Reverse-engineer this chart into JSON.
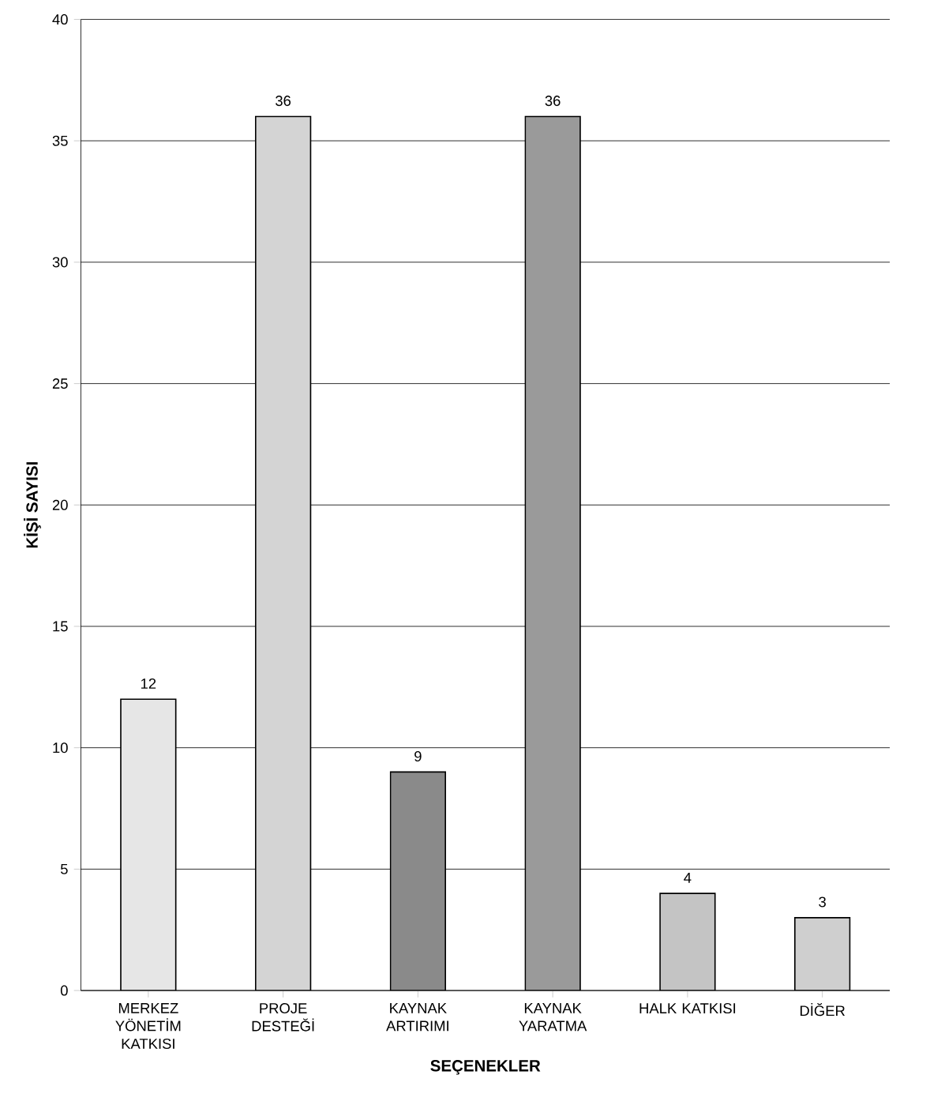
{
  "chart_data": {
    "type": "bar",
    "xlabel": "SEÇENEKLER",
    "ylabel": "KİŞİ SAYISI",
    "categories": [
      "MERKEZ YÖNETİM KATKISI",
      "PROJE DESTEĞİ",
      "KAYNAK ARTIRIMI",
      "KAYNAK YARATMA",
      "HALK KATKISI",
      "DİĞER"
    ],
    "values": [
      12,
      36,
      9,
      36,
      4,
      3
    ],
    "colors": [
      "#e6e6e6",
      "#d4d4d4",
      "#8a8a8a",
      "#9a9a9a",
      "#c4c4c4",
      "#cfcfcf"
    ],
    "ylim": [
      0,
      40
    ],
    "yticks": [
      0,
      5,
      10,
      15,
      20,
      25,
      30,
      35,
      40
    ],
    "grid": "y",
    "data_labels": true
  }
}
